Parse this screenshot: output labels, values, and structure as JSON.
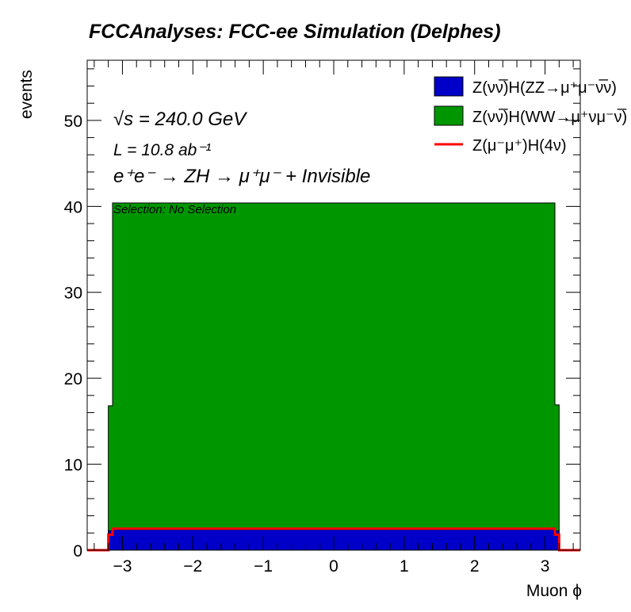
{
  "chart_data": {
    "type": "bar",
    "stacked": true,
    "title": "FCCAnalyses: FCC-ee Simulation (Delphes)",
    "xlabel": "Muon ϕ",
    "ylabel": "events",
    "xlim": [
      -3.5,
      3.5
    ],
    "ylim": [
      0,
      57
    ],
    "bin_edges": [
      -3.5,
      -3.2,
      -3.14,
      3.14,
      3.2,
      3.5
    ],
    "x_ticks": [
      -3,
      -2,
      -1,
      0,
      1,
      2,
      3
    ],
    "x_tick_labels": [
      "−3",
      "−2",
      "−1",
      "0",
      "1",
      "2",
      "3"
    ],
    "y_ticks": [
      0,
      10,
      20,
      30,
      40,
      50
    ],
    "y_tick_labels": [
      "0",
      "10",
      "20",
      "30",
      "40",
      "50"
    ],
    "series": [
      {
        "name": "Z(νν̅)H(ZZ→μ⁺μ⁻ν̅ν)",
        "kind": "stacked-fill",
        "color": "#0000c8",
        "values": [
          0,
          2.3,
          2.4,
          2.3,
          0
        ]
      },
      {
        "name": "Z(νν̅)H(WW→μ⁺νμ⁻ν̅)",
        "kind": "stacked-fill",
        "color": "#009600",
        "values": [
          0,
          14.5,
          38.0,
          14.6,
          0
        ]
      },
      {
        "name": "Z(μ⁻μ⁺)H(4ν)",
        "kind": "line",
        "color": "#ff0000",
        "values": [
          0,
          1.8,
          2.5,
          1.8,
          0
        ]
      }
    ],
    "legend": {
      "placement": "top-right",
      "entries": [
        "Z(νν̅)H(ZZ→μ⁺μ⁻ν̅ν)",
        "Z(νν̅)H(WW→μ⁺νμ⁻ν̅)",
        "Z(μ⁻μ⁺)H(4ν)"
      ]
    },
    "annotations": {
      "sqrt_s": "√s = 240.0 GeV",
      "lumi": "L = 10.8 ab⁻¹",
      "process": "e⁺e⁻ → ZH → μ⁺μ⁻ + Invisible",
      "selection": "Selection: No Selection"
    },
    "grid": false
  }
}
